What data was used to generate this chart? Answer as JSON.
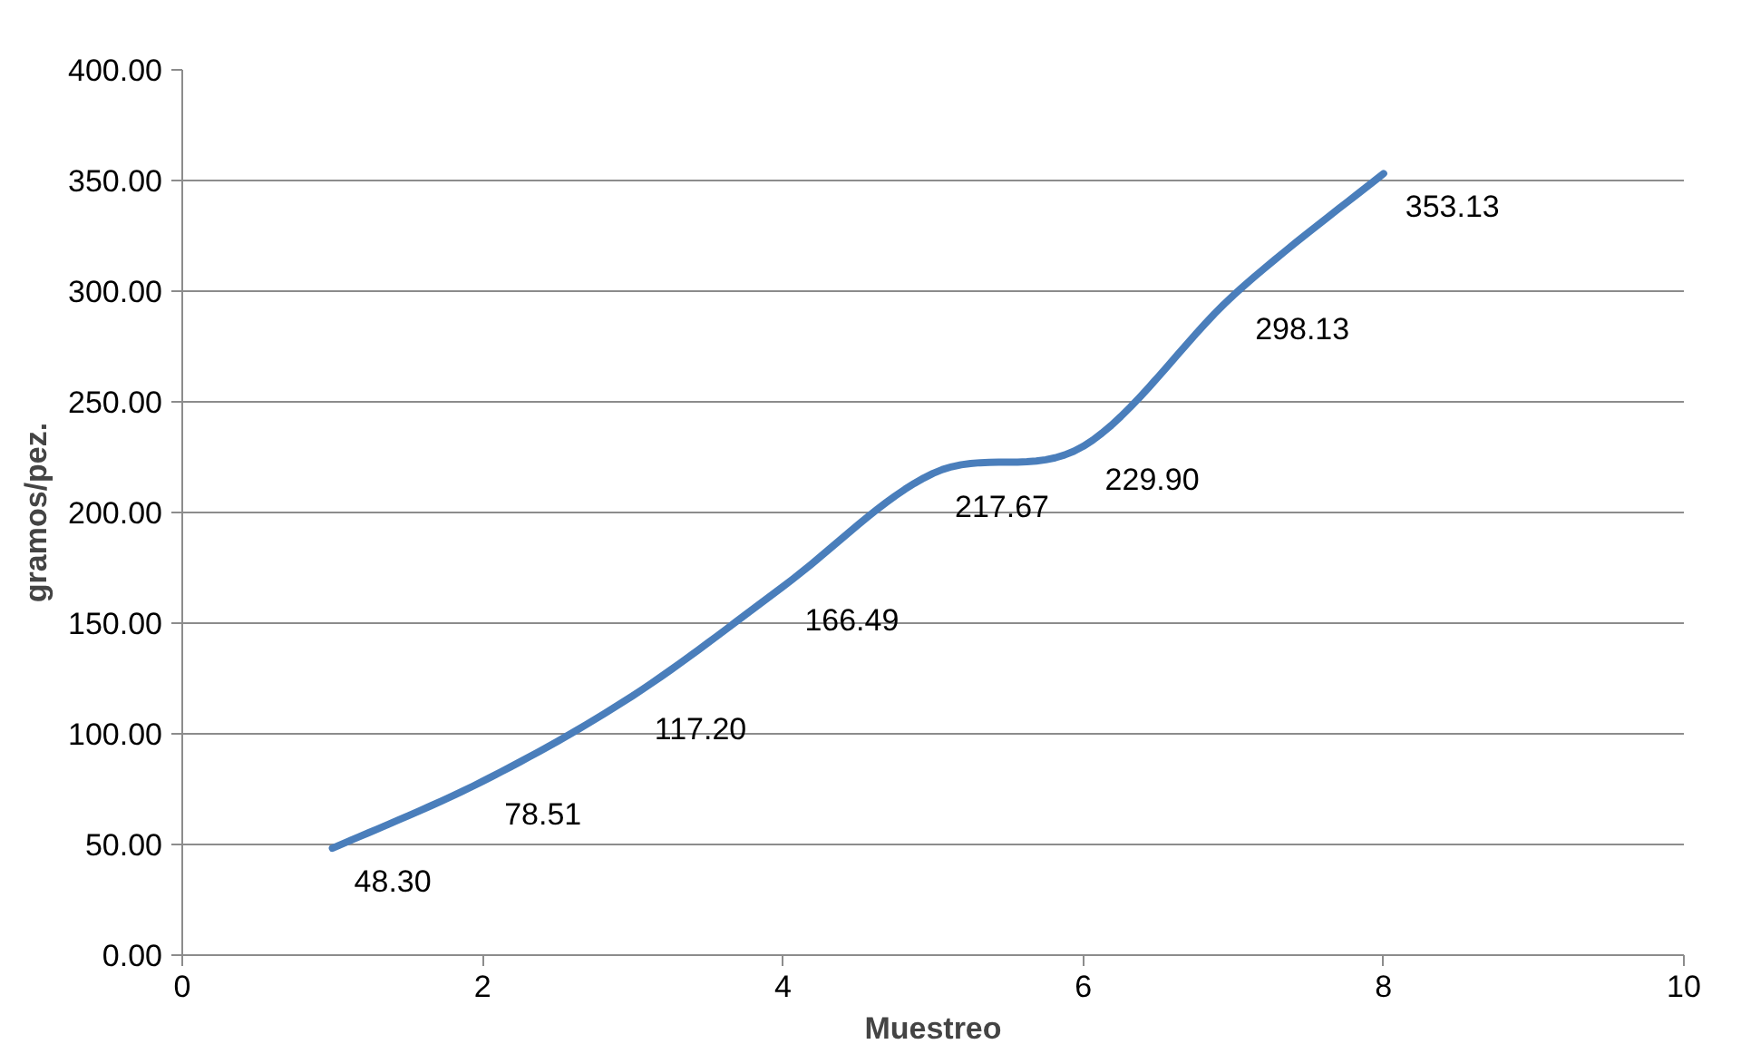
{
  "chart_data": {
    "type": "line",
    "xlabel": "Muestreo",
    "ylabel": "gramos/pez.",
    "x": [
      1,
      2,
      3,
      4,
      5,
      6,
      7,
      8
    ],
    "series": [
      {
        "color": "#4a7ebb",
        "values": [
          48.3,
          78.51,
          117.2,
          166.49,
          217.67,
          229.9,
          298.13,
          353.13
        ],
        "value_labels": [
          "48.30",
          "78.51",
          "117.20",
          "166.49",
          "217.67",
          "229.90",
          "298.13",
          "353.13"
        ]
      }
    ],
    "xlim": [
      0,
      10
    ],
    "xticks": [
      0,
      2,
      4,
      6,
      8,
      10
    ],
    "ylim": [
      0,
      400
    ],
    "yticks": [
      {
        "value": 0,
        "label": "0.00"
      },
      {
        "value": 50,
        "label": "50.00"
      },
      {
        "value": 100,
        "label": "100.00"
      },
      {
        "value": 150,
        "label": "150.00"
      },
      {
        "value": 200,
        "label": "200.00"
      },
      {
        "value": 250,
        "label": "250.00"
      },
      {
        "value": 300,
        "label": "300.00"
      },
      {
        "value": 350,
        "label": "350.00"
      },
      {
        "value": 400,
        "label": "400.00"
      }
    ],
    "grid": "y",
    "marker": "none",
    "line_style": "solid"
  }
}
